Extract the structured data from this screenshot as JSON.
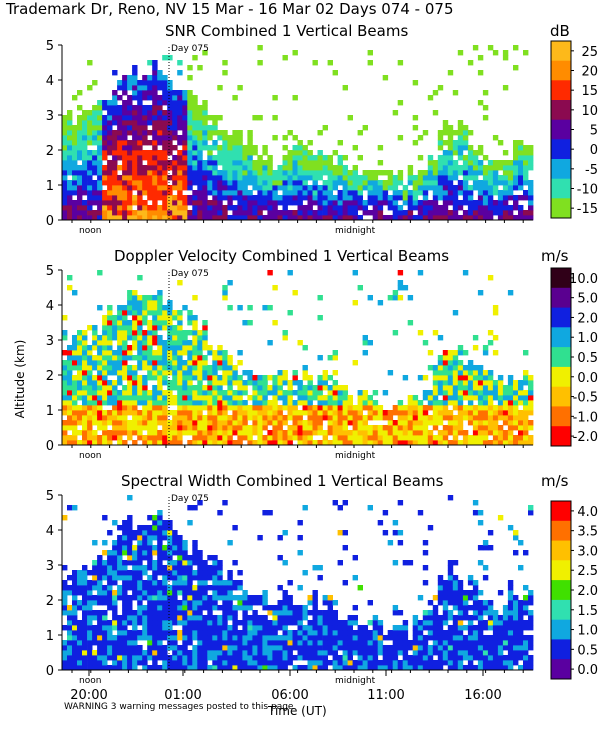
{
  "header": {
    "title": "Trademark Dr, Reno, NV  15 Mar - 16 Mar 02 Days 074 - 075"
  },
  "y_axis_label": "Altitude (km)",
  "x_axis_label": "Time (UT)",
  "warning": "WARNING  3 warning messages posted to this page",
  "chart_data": [
    {
      "type": "heatmap",
      "title": "SNR Combined 1 Vertical Beams",
      "colorbar_unit": "dB",
      "colorbar_ticks": [
        "25",
        "20",
        "15",
        "10",
        "5",
        "0",
        "-5",
        "-10",
        "-15"
      ],
      "colorbar_colors": [
        "#fdb91a",
        "#ff8c00",
        "#ff2a00",
        "#8b0a50",
        "#5a00a0",
        "#1020e0",
        "#10a8e0",
        "#30e0b0",
        "#80e020"
      ],
      "ylim": [
        0,
        5
      ],
      "yticks": [
        "0",
        "1",
        "2",
        "3",
        "4",
        "5"
      ],
      "day_marker": "Day 075",
      "time_annotations": [
        "noon",
        "midnight"
      ]
    },
    {
      "type": "heatmap",
      "title": "Doppler Velocity Combined 1 Vertical Beams",
      "colorbar_unit": "m/s",
      "colorbar_ticks": [
        "10.0",
        "5.0",
        "2.0",
        "1.0",
        "0.5",
        "0.0",
        "-0.5",
        "-1.0",
        "-2.0"
      ],
      "colorbar_colors": [
        "#300018",
        "#5a0090",
        "#1020e0",
        "#10a8e0",
        "#30e090",
        "#f0f000",
        "#ffc000",
        "#ff7000",
        "#ff0000"
      ],
      "ylim": [
        0,
        5
      ],
      "yticks": [
        "0",
        "1",
        "2",
        "3",
        "4",
        "5"
      ],
      "day_marker": "Day 075",
      "time_annotations": [
        "noon",
        "midnight"
      ]
    },
    {
      "type": "heatmap",
      "title": "Spectral Width Combined 1 Vertical Beams",
      "colorbar_unit": "m/s",
      "colorbar_ticks": [
        "4.0",
        "3.5",
        "3.0",
        "2.5",
        "2.0",
        "1.5",
        "1.0",
        "0.5",
        "0.0"
      ],
      "colorbar_colors": [
        "#ff0000",
        "#ff7000",
        "#ffc000",
        "#f0f000",
        "#40e000",
        "#30e0b0",
        "#10a8e0",
        "#1020e0",
        "#5a00a0"
      ],
      "ylim": [
        0,
        5
      ],
      "yticks": [
        "0",
        "1",
        "2",
        "3",
        "4",
        "5"
      ],
      "day_marker": "Day 075",
      "time_annotations": [
        "noon",
        "midnight"
      ],
      "xticks": [
        "20:00",
        "01:00",
        "06:00",
        "11:00",
        "16:00"
      ]
    }
  ]
}
